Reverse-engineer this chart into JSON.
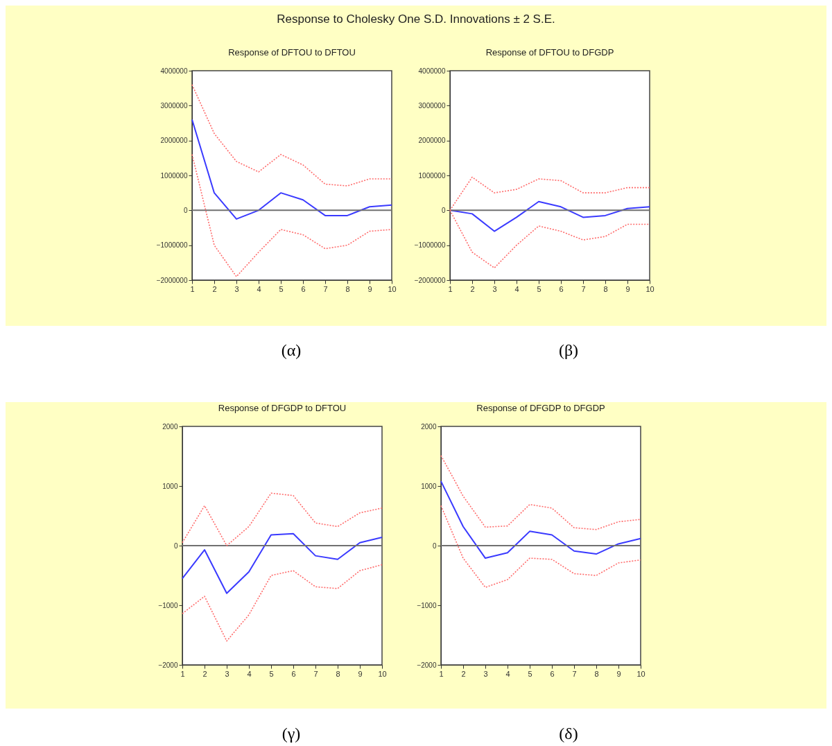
{
  "chart_data": [
    {
      "type": "line",
      "title": "Response of DFTOU to DFTOU",
      "x": [
        1,
        2,
        3,
        4,
        5,
        6,
        7,
        8,
        9,
        10
      ],
      "xlim": [
        1,
        10
      ],
      "xticks": [
        1,
        2,
        3,
        4,
        5,
        6,
        7,
        8,
        9,
        10
      ],
      "ylim": [
        -2000000,
        4000000
      ],
      "yticks": [
        -2000000,
        -1000000,
        0,
        1000000,
        2000000,
        3000000,
        4000000
      ],
      "grid": false,
      "series": [
        {
          "color": "#3a3aff",
          "line_style": "solid",
          "values": [
            2600000,
            500000,
            -250000,
            0,
            500000,
            300000,
            -150000,
            -150000,
            100000,
            150000
          ]
        },
        {
          "color": "#ff6a6a",
          "line_style": "dotted",
          "values": [
            3600000,
            2200000,
            1400000,
            1100000,
            1600000,
            1300000,
            750000,
            700000,
            900000,
            900000
          ]
        },
        {
          "color": "#ff6a6a",
          "line_style": "dotted",
          "values": [
            1600000,
            -1000000,
            -1900000,
            -1200000,
            -550000,
            -700000,
            -1100000,
            -1000000,
            -600000,
            -550000
          ]
        }
      ],
      "ref_lines": [
        {
          "axis": "y",
          "value": 0,
          "color": "#707070"
        }
      ],
      "annotations": [
        "Response to Cholesky One S.D. Innovations ± 2 S.E.",
        "(α)"
      ]
    },
    {
      "type": "line",
      "title": "Response of DFTOU to DFGDP",
      "x": [
        1,
        2,
        3,
        4,
        5,
        6,
        7,
        8,
        9,
        10
      ],
      "xlim": [
        1,
        10
      ],
      "xticks": [
        1,
        2,
        3,
        4,
        5,
        6,
        7,
        8,
        9,
        10
      ],
      "ylim": [
        -2000000,
        4000000
      ],
      "yticks": [
        -2000000,
        -1000000,
        0,
        1000000,
        2000000,
        3000000,
        4000000
      ],
      "grid": false,
      "series": [
        {
          "color": "#3a3aff",
          "line_style": "solid",
          "values": [
            0,
            -100000,
            -600000,
            -200000,
            250000,
            100000,
            -200000,
            -150000,
            50000,
            100000
          ]
        },
        {
          "color": "#ff6a6a",
          "line_style": "dotted",
          "values": [
            0,
            950000,
            500000,
            600000,
            900000,
            850000,
            500000,
            500000,
            650000,
            650000
          ]
        },
        {
          "color": "#ff6a6a",
          "line_style": "dotted",
          "values": [
            0,
            -1200000,
            -1650000,
            -1000000,
            -450000,
            -600000,
            -850000,
            -750000,
            -400000,
            -400000
          ]
        }
      ],
      "ref_lines": [
        {
          "axis": "y",
          "value": 0,
          "color": "#707070"
        }
      ],
      "annotations": [
        "(β)"
      ]
    },
    {
      "type": "line",
      "title": "Response of DFGDP to DFTOU",
      "x": [
        1,
        2,
        3,
        4,
        5,
        6,
        7,
        8,
        9,
        10
      ],
      "xlim": [
        1,
        10
      ],
      "xticks": [
        1,
        2,
        3,
        4,
        5,
        6,
        7,
        8,
        9,
        10
      ],
      "ylim": [
        -2000,
        2000
      ],
      "yticks": [
        -2000,
        -1000,
        0,
        1000,
        2000
      ],
      "grid": false,
      "series": [
        {
          "color": "#3a3aff",
          "line_style": "solid",
          "values": [
            -550,
            -70,
            -800,
            -440,
            180,
            200,
            -170,
            -230,
            50,
            140
          ]
        },
        {
          "color": "#ff6a6a",
          "line_style": "dotted",
          "values": [
            50,
            670,
            0,
            320,
            880,
            840,
            380,
            320,
            550,
            630
          ]
        },
        {
          "color": "#ff6a6a",
          "line_style": "dotted",
          "values": [
            -1140,
            -850,
            -1600,
            -1160,
            -500,
            -420,
            -690,
            -720,
            -420,
            -320
          ]
        }
      ],
      "ref_lines": [
        {
          "axis": "y",
          "value": 0,
          "color": "#707070"
        }
      ],
      "annotations": [
        "(γ)"
      ]
    },
    {
      "type": "line",
      "title": "Response of DFGDP to DFGDP",
      "x": [
        1,
        2,
        3,
        4,
        5,
        6,
        7,
        8,
        9,
        10
      ],
      "xlim": [
        1,
        10
      ],
      "xticks": [
        1,
        2,
        3,
        4,
        5,
        6,
        7,
        8,
        9,
        10
      ],
      "ylim": [
        -2000,
        2000
      ],
      "yticks": [
        -2000,
        -1000,
        0,
        1000,
        2000
      ],
      "grid": false,
      "series": [
        {
          "color": "#3a3aff",
          "line_style": "solid",
          "values": [
            1080,
            320,
            -210,
            -120,
            240,
            180,
            -90,
            -140,
            30,
            120
          ]
        },
        {
          "color": "#ff6a6a",
          "line_style": "dotted",
          "values": [
            1510,
            830,
            310,
            330,
            690,
            630,
            300,
            270,
            400,
            440
          ]
        },
        {
          "color": "#ff6a6a",
          "line_style": "dotted",
          "values": [
            670,
            -210,
            -700,
            -570,
            -210,
            -230,
            -470,
            -500,
            -290,
            -240
          ]
        }
      ],
      "ref_lines": [
        {
          "axis": "y",
          "value": 0,
          "color": "#707070"
        }
      ],
      "annotations": [
        "(δ)"
      ]
    }
  ]
}
